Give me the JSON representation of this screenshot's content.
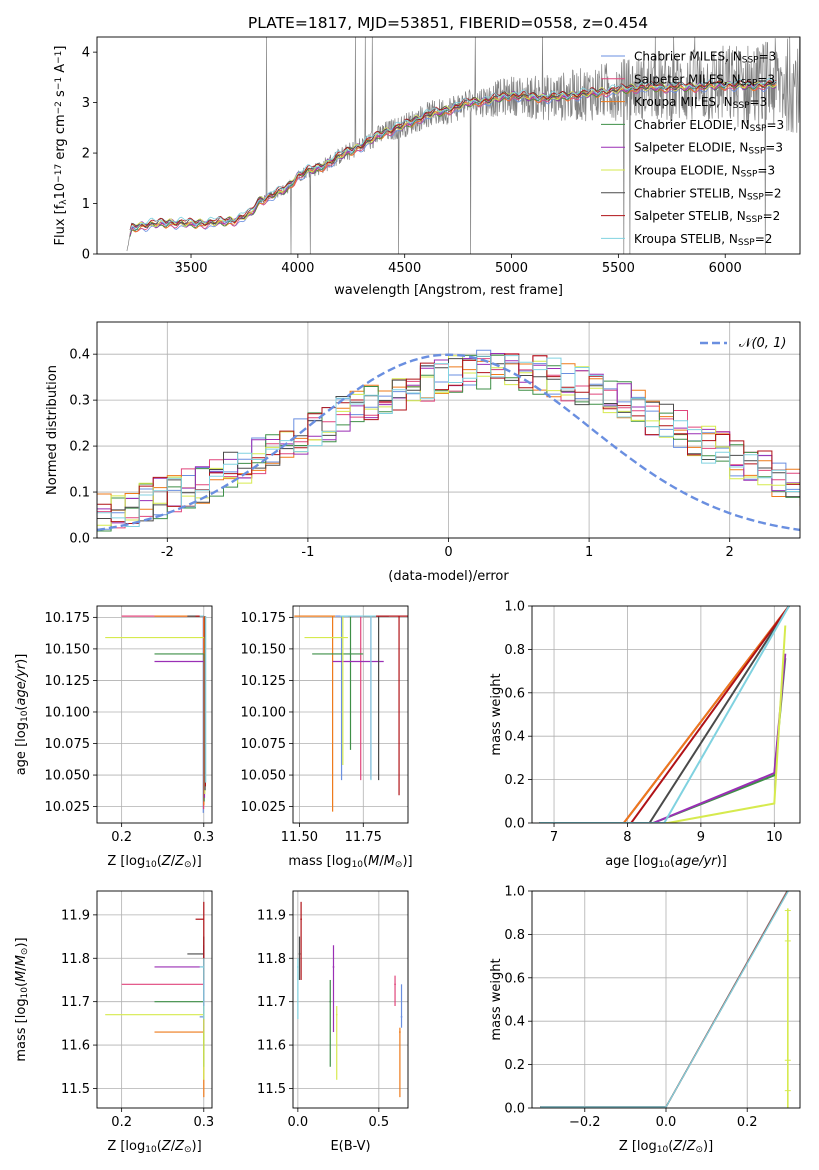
{
  "figure": {
    "title": "PLATE=1817, MJD=53851, FIBERID=0558, z=0.454"
  },
  "colors": {
    "chabrier_miles": "#6a8fe0",
    "salpeter_miles": "#e0457b",
    "kroupa_miles": "#ee7a1a",
    "chabrier_elodie": "#3e8f47",
    "salpeter_elodie": "#9a2fb5",
    "kroupa_elodie": "#d6ea4e",
    "chabrier_stelib": "#4a4a4a",
    "salpeter_stelib": "#b01217",
    "kroupa_stelib": "#80d2e0",
    "data": "#808080",
    "gaussian": "#6a8fe0"
  },
  "chart_data": [
    {
      "id": "spectrum",
      "type": "line",
      "xlabel": "wavelength [Angstrom, rest frame]",
      "ylabel": "Flux [f$_\\lambda$10$^{-17}$ erg cm$^{-2}$ s$^{-1}$ A$^{-1}$]",
      "ylabel_parts": [
        "Flux [f",
        "λ",
        "10",
        "−17",
        " erg cm",
        "−2",
        " s",
        "−1",
        " A",
        "−1",
        "]"
      ],
      "xlim": [
        3060,
        6350
      ],
      "ylim": [
        0,
        4.3
      ],
      "xticks": [
        3500,
        4000,
        4500,
        5000,
        5500,
        6000
      ],
      "yticks": [
        0,
        1,
        2,
        3,
        4
      ],
      "legend": {
        "position": "upper-right",
        "entries": [
          {
            "pre": "Chabrier MILES, N",
            "sub": "SSP",
            "post": "=3",
            "color_key": "chabrier_miles"
          },
          {
            "pre": "Salpeter MILES, N",
            "sub": "SSP",
            "post": "=3",
            "color_key": "salpeter_miles"
          },
          {
            "pre": "Kroupa MILES, N",
            "sub": "SSP",
            "post": "=3",
            "color_key": "kroupa_miles"
          },
          {
            "pre": "Chabrier ELODIE, N",
            "sub": "SSP",
            "post": "=3",
            "color_key": "chabrier_elodie"
          },
          {
            "pre": "Salpeter ELODIE, N",
            "sub": "SSP",
            "post": "=3",
            "color_key": "salpeter_elodie"
          },
          {
            "pre": "Kroupa ELODIE, N",
            "sub": "SSP",
            "post": "=3",
            "color_key": "kroupa_elodie"
          },
          {
            "pre": "Chabrier STELIB, N",
            "sub": "SSP",
            "post": "=2",
            "color_key": "chabrier_stelib"
          },
          {
            "pre": "Salpeter STELIB, N",
            "sub": "SSP",
            "post": "=2",
            "color_key": "salpeter_stelib"
          },
          {
            "pre": "Kroupa STELIB, N",
            "sub": "SSP",
            "post": "=2",
            "color_key": "kroupa_stelib"
          }
        ]
      },
      "model_continuum": {
        "x": [
          3200,
          3220,
          3250,
          3300,
          3400,
          3500,
          3600,
          3700,
          3780,
          3820,
          3900,
          3950,
          4000,
          4050,
          4100,
          4200,
          4300,
          4400,
          4500,
          4600,
          4700,
          4800,
          4900,
          5000,
          5100,
          5200,
          5300,
          5400,
          5500,
          5600,
          5700,
          5800,
          5900,
          6000,
          6100,
          6200,
          6250
        ],
        "y": [
          0.05,
          0.5,
          0.55,
          0.58,
          0.62,
          0.6,
          0.62,
          0.66,
          0.8,
          1.05,
          1.2,
          1.3,
          1.55,
          1.65,
          1.7,
          1.95,
          2.15,
          2.4,
          2.55,
          2.75,
          2.85,
          3.0,
          3.05,
          3.15,
          3.1,
          3.1,
          3.15,
          3.2,
          3.25,
          3.3,
          3.3,
          3.3,
          3.32,
          3.35,
          3.33,
          3.35,
          3.36
        ]
      }
    },
    {
      "id": "residuals",
      "type": "line",
      "xlabel": "(data-model)/error",
      "ylabel": "Normed distribution",
      "xlim": [
        -2.5,
        2.5
      ],
      "ylim": [
        0,
        0.47
      ],
      "xticks": [
        -2,
        -1,
        0,
        1,
        2
      ],
      "yticks": [
        0.0,
        0.1,
        0.2,
        0.3,
        0.4
      ],
      "legend": {
        "position": "upper-right",
        "entries": [
          {
            "label": "𝒩(0, 1)",
            "color_key": "gaussian"
          }
        ]
      }
    },
    {
      "id": "age_vs_Z",
      "type": "scatter",
      "xlabel": "Z [log10(Z/Z⊙)]",
      "ylabel": "age  [log10(age/yr)]",
      "xlim": [
        0.17,
        0.31
      ],
      "ylim": [
        10.012,
        10.184
      ],
      "xticks": [
        0.2,
        0.3
      ],
      "yticks": [
        10.025,
        10.05,
        10.075,
        10.1,
        10.125,
        10.15,
        10.175
      ]
    },
    {
      "id": "age_vs_mass",
      "type": "scatter",
      "xlabel": "mass [log10(M/M⊙)]",
      "ylabel": "",
      "xlim": [
        11.475,
        11.925
      ],
      "ylim": [
        10.012,
        10.184
      ],
      "xticks": [
        11.5,
        11.75
      ],
      "yticks": [
        10.025,
        10.05,
        10.075,
        10.1,
        10.125,
        10.15,
        10.175
      ]
    },
    {
      "id": "cum_weight_age",
      "type": "line",
      "xlabel": "age  [log10(age/yr)]",
      "ylabel": "mass weight",
      "xlim": [
        6.7,
        10.35
      ],
      "ylim": [
        0,
        1
      ],
      "xticks": [
        7,
        8,
        9,
        10
      ],
      "yticks": [
        0.0,
        0.2,
        0.4,
        0.6,
        0.8,
        1.0
      ]
    },
    {
      "id": "mass_vs_Z",
      "type": "scatter",
      "xlabel": "Z [log10(Z/Z⊙)]",
      "ylabel": "mass [log10(M/M⊙)]",
      "xlim": [
        0.17,
        0.31
      ],
      "ylim": [
        11.455,
        11.955
      ],
      "xticks": [
        0.2,
        0.3
      ],
      "yticks": [
        11.5,
        11.6,
        11.7,
        11.8,
        11.9
      ]
    },
    {
      "id": "mass_vs_ebv",
      "type": "scatter",
      "xlabel": "E(B-V)",
      "ylabel": "",
      "xlim": [
        -0.03,
        0.68
      ],
      "ylim": [
        11.455,
        11.955
      ],
      "xticks": [
        0.0,
        0.5
      ],
      "yticks": [
        11.5,
        11.6,
        11.7,
        11.8,
        11.9
      ]
    },
    {
      "id": "cum_weight_Z",
      "type": "line",
      "xlabel": "Z [log10(Z/Z⊙)]",
      "ylabel": "mass weight",
      "xlim": [
        -0.33,
        0.33
      ],
      "ylim": [
        0,
        1
      ],
      "xticks": [
        -0.2,
        0.0,
        0.2
      ],
      "yticks": [
        0.0,
        0.2,
        0.4,
        0.6,
        0.8,
        1.0
      ]
    }
  ],
  "fits": [
    {
      "color_key": "chabrier_miles",
      "Z": 0.3,
      "Zerr": 0.0,
      "age": 10.176,
      "mass": 11.665,
      "mass_lo": 11.64,
      "mass_hi": 11.74,
      "ebv": 0.64,
      "ebv_lo": 0.635,
      "ebv_hi": 0.645
    },
    {
      "color_key": "salpeter_miles",
      "Z": 0.3,
      "Zerr": 0.1,
      "age": 10.176,
      "mass": 11.74,
      "mass_lo": 11.69,
      "mass_hi": 11.76,
      "ebv": 0.6,
      "ebv_lo": 0.595,
      "ebv_hi": 0.605
    },
    {
      "color_key": "kroupa_miles",
      "Z": 0.3,
      "Zerr": 0.06,
      "age": 10.176,
      "mass": 11.63,
      "mass_lo": 11.48,
      "mass_hi": 11.64,
      "ebv": 0.63,
      "ebv_lo": 0.625,
      "ebv_hi": 0.635
    },
    {
      "color_key": "chabrier_elodie",
      "Z": 0.3,
      "Zerr": 0.06,
      "age": 10.146,
      "mass": 11.7,
      "mass_lo": 11.55,
      "mass_hi": 11.75,
      "ebv": 0.2,
      "ebv_lo": 0.195,
      "ebv_hi": 0.205
    },
    {
      "color_key": "salpeter_elodie",
      "Z": 0.3,
      "Zerr": 0.06,
      "age": 10.14,
      "mass": 11.78,
      "mass_lo": 11.63,
      "mass_hi": 11.83,
      "ebv": 0.22,
      "ebv_lo": 0.215,
      "ebv_hi": 0.225
    },
    {
      "color_key": "kroupa_elodie",
      "Z": 0.3,
      "Zerr": 0.12,
      "age": 10.159,
      "mass": 11.67,
      "mass_lo": 11.52,
      "mass_hi": 11.69,
      "ebv": 0.24,
      "ebv_lo": 0.235,
      "ebv_hi": 0.245
    },
    {
      "color_key": "chabrier_stelib",
      "Z": 0.3,
      "Zerr": 0.02,
      "age": 10.176,
      "mass": 11.81,
      "mass_lo": 11.75,
      "mass_hi": 11.85,
      "ebv": 0.01,
      "ebv_lo": 0.005,
      "ebv_hi": 0.015
    },
    {
      "color_key": "salpeter_stelib",
      "Z": 0.3,
      "Zerr": 0.01,
      "age": 10.176,
      "mass": 11.89,
      "mass_lo": 11.75,
      "mass_hi": 11.93,
      "ebv": 0.02,
      "ebv_lo": 0.015,
      "ebv_hi": 0.025
    },
    {
      "color_key": "kroupa_stelib",
      "Z": 0.3,
      "Zerr": 0.0,
      "age": 10.176,
      "mass": 11.78,
      "mass_lo": 11.66,
      "mass_hi": 11.8,
      "ebv": 0.0,
      "ebv_lo": -0.005,
      "ebv_hi": 0.005
    }
  ]
}
